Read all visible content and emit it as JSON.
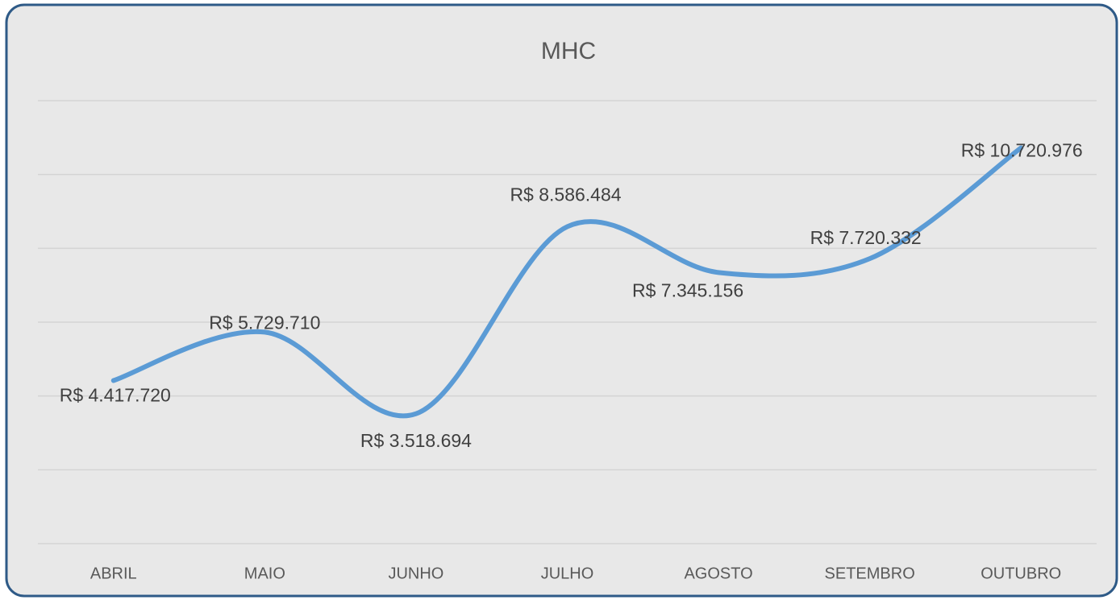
{
  "chart_data": {
    "type": "line",
    "title": "MHC",
    "categories": [
      "ABRIL",
      "MAIO",
      "JUNHO",
      "JULHO",
      "AGOSTO",
      "SETEMBRO",
      "OUTUBRO"
    ],
    "series": [
      {
        "name": "MHC",
        "color": "#5b9bd5",
        "values": [
          4417720,
          5729710,
          3518694,
          8586484,
          7345156,
          7720332,
          10720976
        ],
        "value_labels": [
          "R$ 4.417.720",
          "R$ 5.729.710",
          "R$ 3.518.694",
          "R$ 8.586.484",
          "R$ 7.345.156",
          "R$ 7.720.332",
          "R$ 10.720.976"
        ]
      }
    ],
    "ylim": [
      0,
      12000000
    ],
    "yticks": [
      0,
      2000000,
      4000000,
      6000000,
      8000000,
      10000000,
      12000000
    ],
    "grid": true,
    "smooth": true
  }
}
